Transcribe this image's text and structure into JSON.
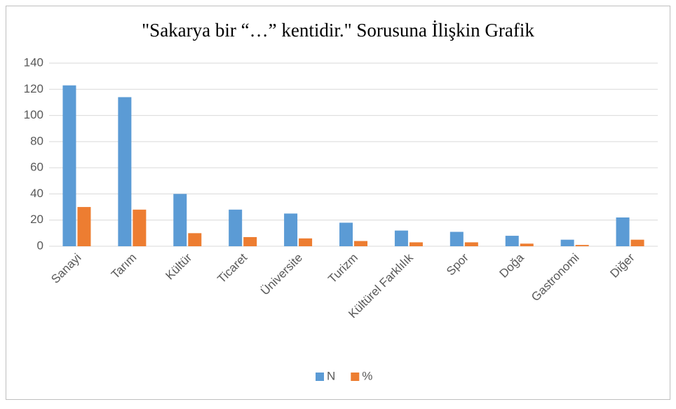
{
  "chart_data": {
    "type": "bar",
    "title": "\"Sakarya bir “…” kentidir.\" Sorusuna İlişkin Grafik",
    "categories": [
      "Sanayi",
      "Tarım",
      "Kültür",
      "Ticaret",
      "Üniversite",
      "Turizm",
      "Kültürel Farklılık",
      "Spor",
      "Doğa",
      "Gastronomi",
      "Diğer"
    ],
    "series": [
      {
        "name": "N",
        "color": "#5b9bd5",
        "values": [
          123,
          114,
          40,
          28,
          25,
          18,
          12,
          11,
          8,
          5,
          22
        ]
      },
      {
        "name": "%",
        "color": "#ed7d31",
        "values": [
          30,
          28,
          10,
          7,
          6,
          4,
          3,
          3,
          2,
          1,
          5
        ]
      }
    ],
    "ylim": [
      0,
      140
    ],
    "yticks": [
      0,
      20,
      40,
      60,
      80,
      100,
      120,
      140
    ],
    "grid": true,
    "legend": "bottom"
  }
}
